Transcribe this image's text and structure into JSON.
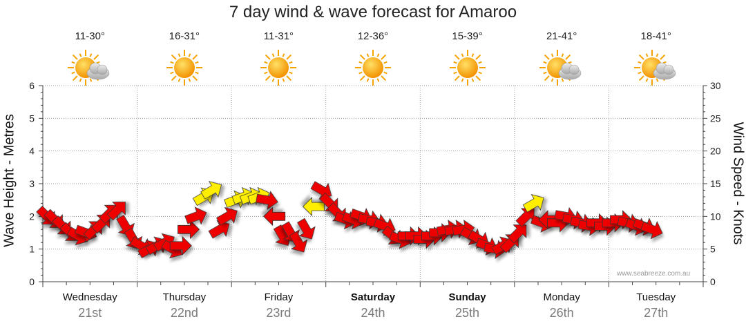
{
  "title": "7 day wind & wave forecast for Amaroo",
  "watermark": "www.seabreeze.com.au",
  "days": [
    {
      "name": "Wednesday",
      "date": "21st",
      "temp": "11-30°",
      "icon": "partly-cloudy-icon",
      "bold": false
    },
    {
      "name": "Thursday",
      "date": "22nd",
      "temp": "16-31°",
      "icon": "sunny-icon",
      "bold": false
    },
    {
      "name": "Friday",
      "date": "23rd",
      "temp": "11-31°",
      "icon": "sunny-icon",
      "bold": false
    },
    {
      "name": "Saturday",
      "date": "24th",
      "temp": "12-36°",
      "icon": "sunny-icon",
      "bold": true
    },
    {
      "name": "Sunday",
      "date": "25th",
      "temp": "15-39°",
      "icon": "sunny-icon",
      "bold": true
    },
    {
      "name": "Monday",
      "date": "26th",
      "temp": "21-41°",
      "icon": "partly-cloudy-icon",
      "bold": false
    },
    {
      "name": "Tuesday",
      "date": "27th",
      "temp": "18-41°",
      "icon": "partly-cloudy-icon",
      "bold": false
    }
  ],
  "colors": {
    "grid": "#9a9a9a",
    "arrow_strong": "#ee0000",
    "arrow_light": "#ffee00",
    "arrow_stroke": "#333333",
    "sun": "#ffaa00",
    "cloud": "#c8c8c8"
  },
  "chart_data": {
    "type": "scatter",
    "title": "7 day wind & wave forecast for Amaroo",
    "ylabel_left": "Wave Height - Metres",
    "ylabel_right": "Wind Speed - Knots",
    "left_ticks": [
      "0",
      "1",
      "2",
      "3",
      "4",
      "5",
      "6"
    ],
    "right_ticks": [
      "0",
      "5",
      "10",
      "15",
      "20",
      "25",
      "30"
    ],
    "ylim_left": [
      0,
      6
    ],
    "ylim_right": [
      0,
      30
    ],
    "grid": true,
    "categories": [
      "Wednesday 21st",
      "Thursday 22nd",
      "Friday 23rd",
      "Saturday 24th",
      "Sunday 25th",
      "Monday 26th",
      "Tuesday 27th"
    ],
    "series": [
      {
        "values_note": "wind arrows: hour offset from Wednesday 00:00, wind speed in knots, direction arrow points (deg, 0=up clockwise)",
        "points": [
          [
            1,
            10,
            135
          ],
          [
            3,
            9.5,
            135
          ],
          [
            5,
            8.5,
            135
          ],
          [
            7,
            7.5,
            135
          ],
          [
            9,
            7,
            120
          ],
          [
            11,
            7.5,
            110
          ],
          [
            13,
            8,
            45
          ],
          [
            15,
            9,
            45
          ],
          [
            17,
            10.5,
            45
          ],
          [
            19,
            11,
            45
          ],
          [
            21,
            8.5,
            150
          ],
          [
            23,
            6.5,
            150
          ],
          [
            25,
            5.5,
            120
          ],
          [
            27,
            5,
            60
          ],
          [
            29,
            5.5,
            60
          ],
          [
            31,
            6,
            60
          ],
          [
            33,
            5,
            120
          ],
          [
            35,
            5.5,
            90
          ],
          [
            37,
            8,
            90
          ],
          [
            39,
            10,
            70
          ],
          [
            41,
            13,
            60
          ],
          [
            43,
            14,
            60
          ],
          [
            45,
            8,
            60
          ],
          [
            47,
            10,
            60
          ],
          [
            49,
            12.5,
            70
          ],
          [
            51,
            13,
            70
          ],
          [
            53,
            13,
            70
          ],
          [
            55,
            13,
            70
          ],
          [
            57,
            12.5,
            100
          ],
          [
            59,
            10,
            270
          ],
          [
            61,
            7,
            150
          ],
          [
            63,
            7.5,
            150
          ],
          [
            65,
            6,
            150
          ],
          [
            67,
            8,
            150
          ],
          [
            69,
            11.5,
            270
          ],
          [
            71,
            14,
            120
          ],
          [
            73,
            12,
            135
          ],
          [
            75,
            10.5,
            135
          ],
          [
            77,
            9.5,
            110
          ],
          [
            79,
            9.5,
            110
          ],
          [
            81,
            10,
            110
          ],
          [
            83,
            9.5,
            100
          ],
          [
            85,
            9,
            100
          ],
          [
            87,
            8.5,
            110
          ],
          [
            89,
            7,
            130
          ],
          [
            91,
            6.5,
            110
          ],
          [
            93,
            7,
            90
          ],
          [
            95,
            7,
            90
          ],
          [
            97,
            6.5,
            90
          ],
          [
            99,
            7,
            90
          ],
          [
            101,
            7.5,
            90
          ],
          [
            103,
            8,
            80
          ],
          [
            105,
            8,
            80
          ],
          [
            107,
            8,
            80
          ],
          [
            109,
            7,
            120
          ],
          [
            111,
            6.5,
            120
          ],
          [
            113,
            5.5,
            110
          ],
          [
            115,
            5,
            100
          ],
          [
            117,
            5.5,
            60
          ],
          [
            119,
            6,
            45
          ],
          [
            121,
            7.5,
            45
          ],
          [
            123,
            10,
            45
          ],
          [
            125,
            12,
            60
          ],
          [
            127,
            9,
            110
          ],
          [
            129,
            9.5,
            270
          ],
          [
            131,
            9,
            90
          ],
          [
            133,
            10,
            100
          ],
          [
            135,
            9.5,
            100
          ],
          [
            137,
            9,
            100
          ],
          [
            139,
            8.5,
            100
          ],
          [
            141,
            9,
            90
          ],
          [
            143,
            8.5,
            90
          ],
          [
            145,
            9,
            90
          ],
          [
            147,
            9.5,
            90
          ],
          [
            149,
            9,
            100
          ],
          [
            151,
            8.5,
            110
          ],
          [
            153,
            8.5,
            110
          ],
          [
            155,
            8,
            110
          ]
        ]
      }
    ]
  }
}
